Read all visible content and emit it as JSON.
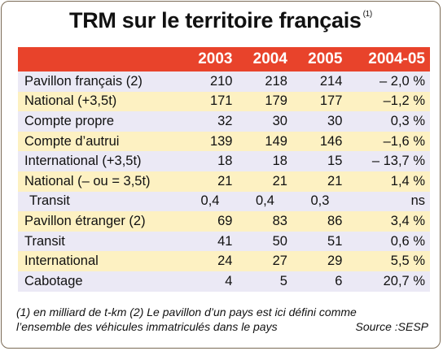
{
  "title": "TRM sur le territoire français",
  "title_note": "(1)",
  "columns": [
    "",
    "2003",
    "2004",
    "2005",
    "2004-05"
  ],
  "rows": [
    {
      "label": "Pavillon français (2)",
      "v2003": "210",
      "v2004": "218",
      "v2005": "214",
      "change": "– 2,0 %"
    },
    {
      "label": "National (+3,5t)",
      "v2003": "171",
      "v2004": "179",
      "v2005": "177",
      "change": "–1,2 %"
    },
    {
      "label": "Compte propre",
      "v2003": "32",
      "v2004": "30",
      "v2005": "30",
      "change": "0,3 %"
    },
    {
      "label": "Compte d’autrui",
      "v2003": "139",
      "v2004": "149",
      "v2005": "146",
      "change": "–1,6 %"
    },
    {
      "label": "International (+3,5t)",
      "v2003": "18",
      "v2004": "18",
      "v2005": "15",
      "change": "– 13,7 %"
    },
    {
      "label": "National (– ou = 3,5t)",
      "v2003": "21",
      "v2004": "21",
      "v2005": "21",
      "change": "1,4 %"
    },
    {
      "label": "Transit",
      "v2003": "0,4",
      "v2004": "0,4",
      "v2005": "0,3",
      "change": "ns"
    },
    {
      "label": "Pavillon étranger (2)",
      "v2003": "69",
      "v2004": "83",
      "v2005": "86",
      "change": "3,4 %"
    },
    {
      "label": "Transit",
      "v2003": "41",
      "v2004": "50",
      "v2005": "51",
      "change": "0,6 %"
    },
    {
      "label": "International",
      "v2003": "24",
      "v2004": "27",
      "v2005": "29",
      "change": "5,5 %"
    },
    {
      "label": "Cabotage",
      "v2003": "4",
      "v2004": "5",
      "v2005": "6",
      "change": "20,7 %"
    }
  ],
  "footnote_line1": "(1) en milliard de t-km (2) Le pavillon d’un pays est ici défini comme",
  "footnote_line2": "l’ensemble des véhicules immatriculés dans le pays",
  "source": "Source :SESP",
  "colors": {
    "header": "#e8432b",
    "row_a": "#ebe9f5",
    "row_b": "#fdf1c2"
  }
}
